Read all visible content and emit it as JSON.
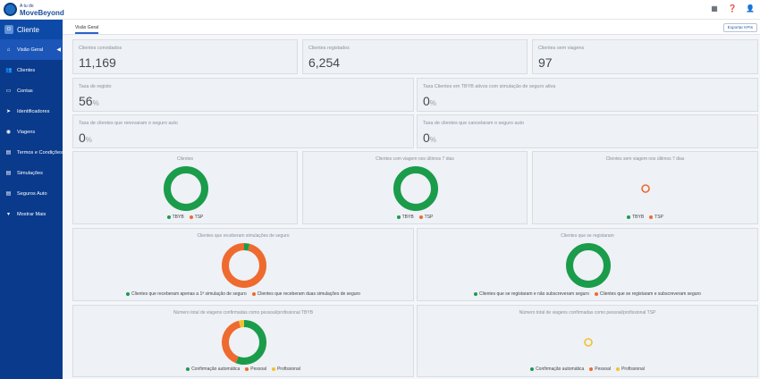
{
  "app": {
    "logo_small": "A tu do",
    "logo_big": "MoveBeyond",
    "section_title": "Cliente",
    "section_badge": "Cl"
  },
  "topbar": {
    "icons": [
      "grid-icon",
      "help-icon",
      "user-icon"
    ]
  },
  "sidebar": {
    "items": [
      {
        "label": "Visão Geral",
        "icon": "home-icon",
        "active": true
      },
      {
        "label": "Clientes",
        "icon": "users-icon"
      },
      {
        "label": "Contas",
        "icon": "card-icon"
      },
      {
        "label": "Identificadores",
        "icon": "send-icon"
      },
      {
        "label": "Viagens",
        "icon": "trip-icon"
      },
      {
        "label": "Termos e Condições",
        "icon": "document-icon"
      },
      {
        "label": "Simulações",
        "icon": "document-icon"
      },
      {
        "label": "Seguros Auto",
        "icon": "document-icon"
      },
      {
        "label": "Mostrar Mais",
        "icon": "chevron-down-icon"
      }
    ]
  },
  "tabs": {
    "active": "Visão Geral",
    "export_label": "Exportar KPIs"
  },
  "kpis": {
    "invited": {
      "label": "Clientes convidados",
      "value": "11,169"
    },
    "registered": {
      "label": "Clientes registados",
      "value": "6,254"
    },
    "no_trips": {
      "label": "Clientes sem viagens",
      "value": "97"
    },
    "reg_rate": {
      "label": "Taxa de registo",
      "value": "56",
      "unit": "%"
    },
    "tbyb_rate": {
      "label": "Taxa Clientes em TBYB ativos com simulação de seguro ativa",
      "value": "0",
      "unit": "%"
    },
    "renew_rate": {
      "label": "Taxa de clientes que renovaram o seguro auto",
      "value": "0",
      "unit": "%"
    },
    "cancel_rate": {
      "label": "Taxa de clientes que cancelaram o seguro auto",
      "value": "0",
      "unit": "%"
    }
  },
  "colors": {
    "green": "#1a9c4b",
    "orange": "#ee6a2e",
    "yellow": "#f2c12e"
  },
  "charts": {
    "clients": {
      "title": "Clientes",
      "legend": [
        {
          "label": "TBYB",
          "color": "#1a9c4b"
        },
        {
          "label": "TSP",
          "color": "#ee6a2e"
        }
      ],
      "values": [
        1,
        0
      ]
    },
    "trips7": {
      "title": "Clientes com viagem nos últimos 7 dias",
      "legend": [
        {
          "label": "TBYB",
          "color": "#1a9c4b"
        },
        {
          "label": "TSP",
          "color": "#ee6a2e"
        }
      ],
      "values": [
        1,
        0
      ]
    },
    "notrips7": {
      "title": "Clientes sem viagem nos últimos 7 dias",
      "legend": [
        {
          "label": "TBYB",
          "color": "#1a9c4b"
        },
        {
          "label": "TSP",
          "color": "#ee6a2e"
        }
      ],
      "values": [
        0,
        1
      ]
    },
    "simulations": {
      "title": "Clientes que receberam simulações de seguro",
      "legend": [
        {
          "label": "Clientes que receberam apenas a 1ª simulação de seguro",
          "color": "#1a9c4b"
        },
        {
          "label": "Clientes que receberam duas simulações de seguro",
          "color": "#ee6a2e"
        }
      ],
      "values": [
        0.04,
        0.96
      ]
    },
    "registered": {
      "title": "Clientes que se registaram",
      "legend": [
        {
          "label": "Clientes que se registaram e não subscreveram seguro",
          "color": "#1a9c4b"
        },
        {
          "label": "Clientes que se registaram e subscreveram seguro",
          "color": "#ee6a2e"
        }
      ],
      "values": [
        1,
        0
      ]
    },
    "trips_tbyb": {
      "title": "Número total de viagens confirmadas como pessoal/profissional TBYB",
      "legend": [
        {
          "label": "Confirmação automática",
          "color": "#1a9c4b"
        },
        {
          "label": "Pessoal",
          "color": "#ee6a2e"
        },
        {
          "label": "Profissional",
          "color": "#f2c12e"
        }
      ],
      "values": [
        0.56,
        0.4,
        0.04
      ]
    },
    "trips_tsp": {
      "title": "Número total de viagens confirmadas como pessoal/profissional TSP",
      "legend": [
        {
          "label": "Confirmação automática",
          "color": "#1a9c4b"
        },
        {
          "label": "Pessoal",
          "color": "#ee6a2e"
        },
        {
          "label": "Profissional",
          "color": "#f2c12e"
        }
      ],
      "values": [
        0,
        0,
        1
      ]
    }
  }
}
